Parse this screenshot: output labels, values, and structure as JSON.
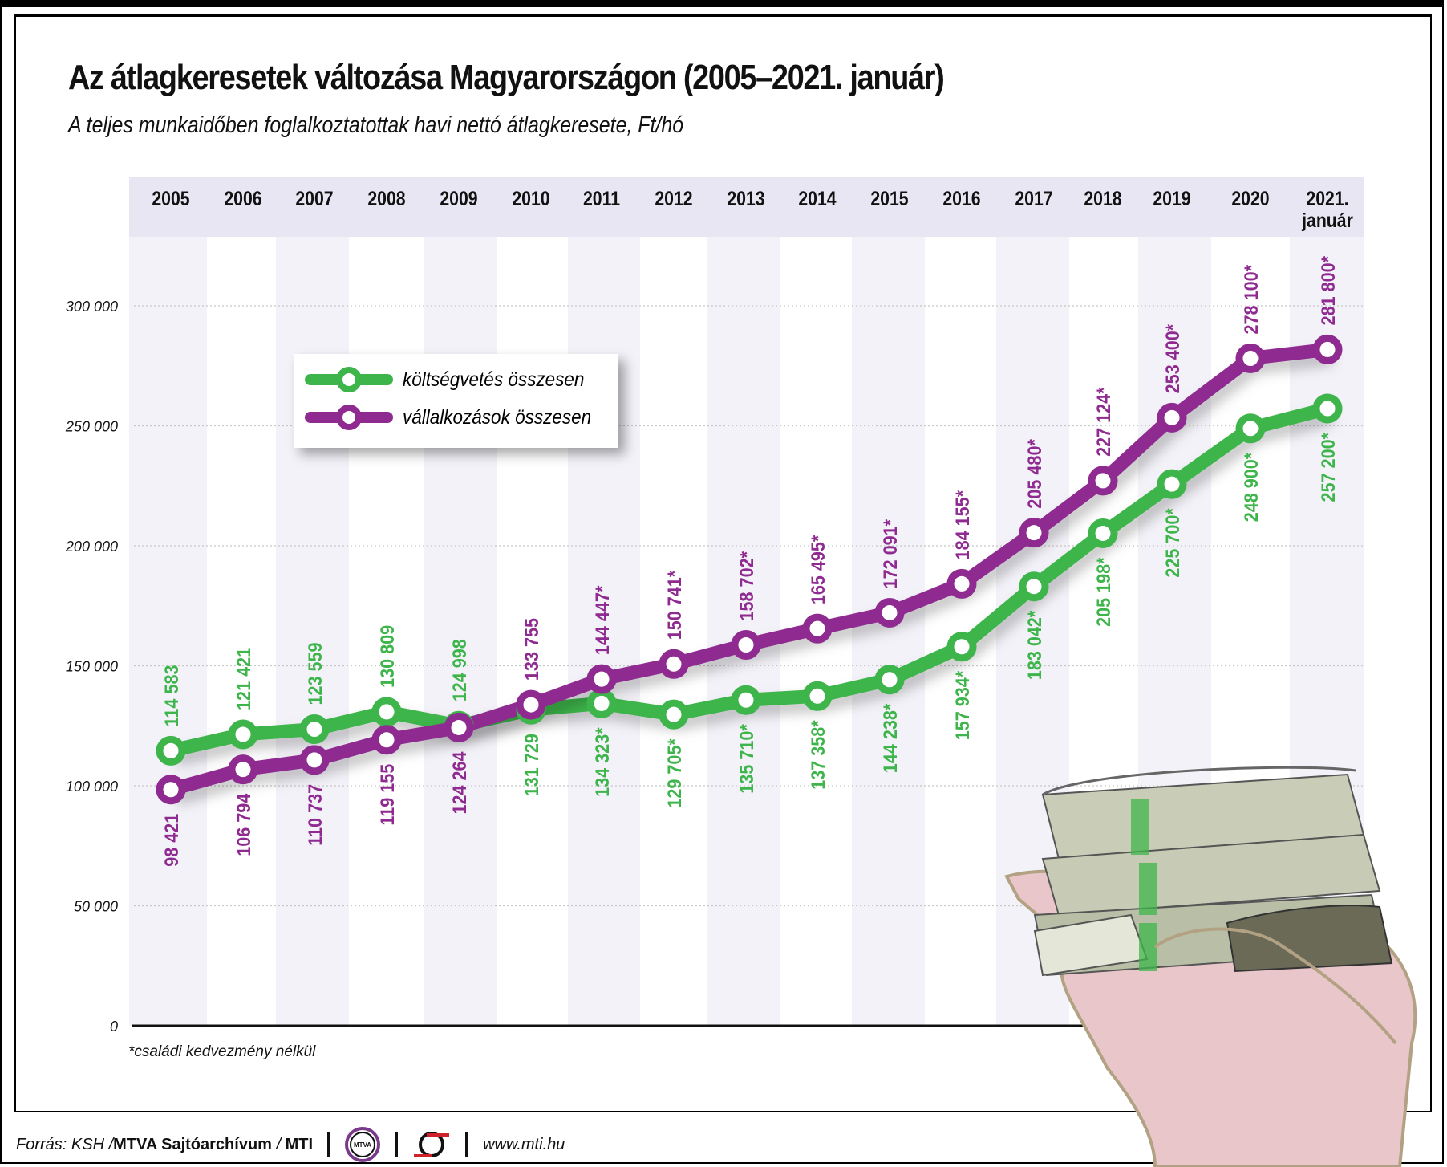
{
  "title": "Az átlagkeresetek változása Magyarországon (2005–2021. január)",
  "subtitle": "A teljes munkaidőben foglalkoztatottak havi nettó átlagkeresete, Ft/hó",
  "footnote": "*családi kedvezmény nélkül",
  "footer": {
    "source_prefix": "Forrás: KSH / ",
    "source_bold": "MTVA Sajtóarchívum",
    "source_sep": " / ",
    "source_mti": "MTI",
    "mtva_logo": "MTVA",
    "url": "www.mti.hu"
  },
  "chart_data": {
    "type": "line",
    "title": "Az átlagkeresetek változása Magyarországon (2005–2021. január)",
    "subtitle": "A teljes munkaidőben foglalkoztatottak havi nettó átlagkeresete, Ft/hó",
    "categories": [
      "2005",
      "2006",
      "2007",
      "2008",
      "2009",
      "2010",
      "2011",
      "2012",
      "2013",
      "2014",
      "2015",
      "2016",
      "2017",
      "2018",
      "2019",
      "2020",
      "2021. január"
    ],
    "category_lines": [
      [
        "2005"
      ],
      [
        "2006"
      ],
      [
        "2007"
      ],
      [
        "2008"
      ],
      [
        "2009"
      ],
      [
        "2010"
      ],
      [
        "2011"
      ],
      [
        "2012"
      ],
      [
        "2013"
      ],
      [
        "2014"
      ],
      [
        "2015"
      ],
      [
        "2016"
      ],
      [
        "2017"
      ],
      [
        "2018"
      ],
      [
        "2019"
      ],
      [
        "2020"
      ],
      [
        "2021.",
        "január"
      ]
    ],
    "ylim": [
      0,
      330000
    ],
    "yticks": [
      0,
      50000,
      100000,
      150000,
      200000,
      250000,
      300000
    ],
    "ytick_labels": [
      "0",
      "50 000",
      "100 000",
      "150 000",
      "200 000",
      "250 000",
      "300 000"
    ],
    "grid": true,
    "legend_position": "top-left",
    "series": [
      {
        "name": "költségvetés összesen",
        "color": "#3db54a",
        "values": [
          114583,
          121421,
          123559,
          130809,
          124998,
          131729,
          134323,
          129705,
          135710,
          137358,
          144238,
          157934,
          183042,
          205198,
          225700,
          248900,
          257200
        ],
        "labels": [
          "114 583",
          "121 421",
          "123 559",
          "130 809",
          "124 998",
          "131 729",
          "134 323*",
          "129 705*",
          "135 710*",
          "137 358*",
          "144 238*",
          "157 934*",
          "183 042*",
          "205 198*",
          "225 700*",
          "248 900*",
          "257 200*"
        ]
      },
      {
        "name": "vállalkozások összesen",
        "color": "#8f2a90",
        "values": [
          98421,
          106794,
          110737,
          119155,
          124264,
          133755,
          144447,
          150741,
          158702,
          165495,
          172091,
          184155,
          205480,
          227124,
          253400,
          278100,
          281800
        ],
        "labels": [
          "98 421",
          "106 794",
          "110 737",
          "119 155",
          "124 264",
          "133 755",
          "144 447*",
          "150 741*",
          "158 702*",
          "165 495*",
          "172 091*",
          "184 155*",
          "205 480*",
          "227 124*",
          "253 400*",
          "278 100*",
          "281 800*"
        ]
      }
    ]
  }
}
